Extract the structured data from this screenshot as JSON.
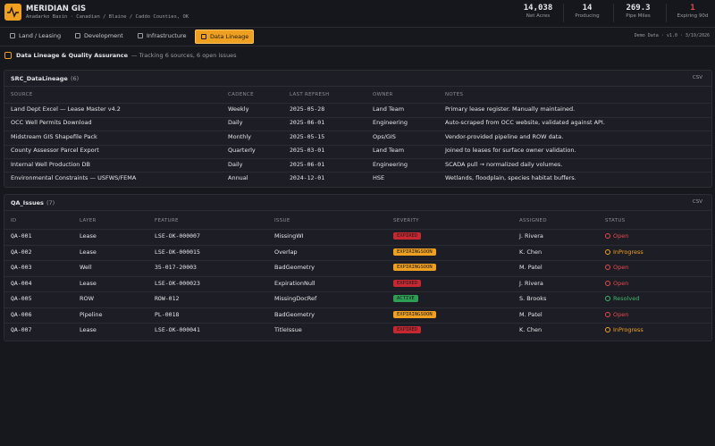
{
  "header": {
    "title": "MERIDIAN GIS",
    "subtitle": "Anadarko Basin · Canadian / Blaine / Caddo Counties, OK",
    "stats": [
      {
        "value": "14,038",
        "label": "Net Acres"
      },
      {
        "value": "14",
        "label": "Producing"
      },
      {
        "value": "269.3",
        "label": "Pipe Miles"
      },
      {
        "value": "1",
        "label": "Expiring 90d",
        "color": "#e5484d"
      }
    ]
  },
  "tabs": {
    "items": [
      "Land / Leasing",
      "Development",
      "Infrastructure",
      "Data Lineage"
    ],
    "active": 3,
    "meta": "Demo Data · v1.0 · 3/19/2026"
  },
  "section": {
    "title": "Data Lineage & Quality Assurance",
    "subtitle": "— Tracking 6 sources, 6 open issues"
  },
  "lineage": {
    "title": "SRC_DataLineage",
    "count": "(6)",
    "export": "CSV",
    "columns": [
      "SOURCE",
      "CADENCE",
      "LAST REFRESH",
      "OWNER",
      "NOTES"
    ],
    "rows": [
      [
        "Land Dept Excel — Lease Master v4.2",
        "Weekly",
        "2025-05-28",
        "Land Team",
        "Primary lease register. Manually maintained."
      ],
      [
        "OCC Well Permits Download",
        "Daily",
        "2025-06-01",
        "Engineering",
        "Auto-scraped from OCC website, validated against API."
      ],
      [
        "Midstream GIS Shapefile Pack",
        "Monthly",
        "2025-05-15",
        "Ops/GIS",
        "Vendor-provided pipeline and ROW data."
      ],
      [
        "County Assessor Parcel Export",
        "Quarterly",
        "2025-03-01",
        "Land Team",
        "Joined to leases for surface owner validation."
      ],
      [
        "Internal Well Production DB",
        "Daily",
        "2025-06-01",
        "Engineering",
        "SCADA pull → normalized daily volumes."
      ],
      [
        "Environmental Constraints — USFWS/FEMA",
        "Annual",
        "2024-12-01",
        "HSE",
        "Wetlands, floodplain, species habitat buffers."
      ]
    ]
  },
  "qa": {
    "title": "QA_Issues",
    "count": "(7)",
    "export": "CSV",
    "columns": [
      "ID",
      "LAYER",
      "FEATURE",
      "ISSUE",
      "SEVERITY",
      "ASSIGNED",
      "STATUS"
    ],
    "rows": [
      [
        "QA-001",
        "Lease",
        "LSE-OK-000007",
        "MissingWI",
        "EXPIRED",
        "J. Rivera",
        "Open"
      ],
      [
        "QA-002",
        "Lease",
        "LSE-OK-000015",
        "Overlap",
        "EXPIRINGSOON",
        "K. Chen",
        "InProgress"
      ],
      [
        "QA-003",
        "Well",
        "35-017-20003",
        "BadGeometry",
        "EXPIRINGSOON",
        "M. Patel",
        "Open"
      ],
      [
        "QA-004",
        "Lease",
        "LSE-OK-000023",
        "ExpirationNull",
        "EXPIRED",
        "J. Rivera",
        "Open"
      ],
      [
        "QA-005",
        "ROW",
        "ROW-012",
        "MissingDocRef",
        "ACTIVE",
        "S. Brooks",
        "Resolved"
      ],
      [
        "QA-006",
        "Pipeline",
        "PL-0018",
        "BadGeometry",
        "EXPIRINGSOON",
        "M. Patel",
        "Open"
      ],
      [
        "QA-007",
        "Lease",
        "LSE-OK-000041",
        "TitleIssue",
        "EXPIRED",
        "K. Chen",
        "InProgress"
      ]
    ],
    "row_styles": [
      {
        "severity": "#c62832",
        "status": "#e5484d"
      },
      {
        "severity": "#f0a020",
        "status": "#f0a020"
      },
      {
        "severity": "#f0a020",
        "status": "#e5484d"
      },
      {
        "severity": "#c62832",
        "status": "#e5484d"
      },
      {
        "severity": "#2f9e55",
        "status": "#3fb96a"
      },
      {
        "severity": "#f0a020",
        "status": "#e5484d"
      },
      {
        "severity": "#c62832",
        "status": "#f0a020"
      }
    ]
  }
}
